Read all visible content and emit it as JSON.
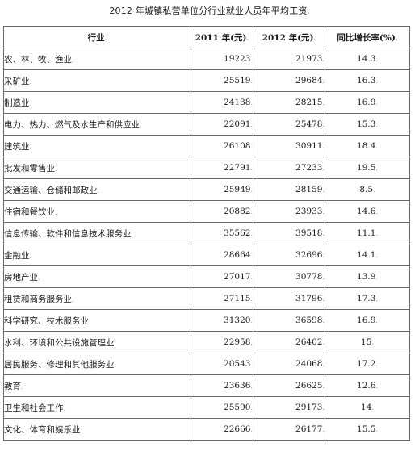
{
  "title": "2012 年城镇私营单位分行业就业人员年平均工资",
  "mark": ".",
  "headers": {
    "industry": "行业",
    "y2011": "2011 年(元)",
    "y2012": "2012 年(元)",
    "growth": "同比增长率(%)"
  },
  "rows": [
    {
      "industry": "农、林、牧、渔业",
      "y2011": "19223",
      "y2012": "21973",
      "growth": "14.3"
    },
    {
      "industry": "采矿业",
      "y2011": "25519",
      "y2012": "29684",
      "growth": "16.3"
    },
    {
      "industry": "制造业",
      "y2011": "24138",
      "y2012": "28215",
      "growth": "16.9"
    },
    {
      "industry": "电力、热力、燃气及水生产和供应业",
      "y2011": "22091",
      "y2012": "25478",
      "growth": "15.3"
    },
    {
      "industry": "建筑业",
      "y2011": "26108",
      "y2012": "30911",
      "growth": "18.4"
    },
    {
      "industry": "批发和零售业",
      "y2011": "22791",
      "y2012": "27233",
      "growth": "19.5"
    },
    {
      "industry": "交通运输、仓储和邮政业",
      "y2011": "25949",
      "y2012": "28159",
      "growth": "8.5"
    },
    {
      "industry": "住宿和餐饮业",
      "y2011": "20882",
      "y2012": "23933",
      "growth": "14.6"
    },
    {
      "industry": "信息传输、软件和信息技术服务业",
      "y2011": "35562",
      "y2012": "39518",
      "growth": "11.1"
    },
    {
      "industry": "金融业",
      "y2011": "28664",
      "y2012": "32696",
      "growth": "14.1"
    },
    {
      "industry": "房地产业",
      "y2011": "27017",
      "y2012": "30778",
      "growth": "13.9"
    },
    {
      "industry": "租赁和商务服务业",
      "y2011": "27115",
      "y2012": "31796",
      "growth": "17.3"
    },
    {
      "industry": "科学研究、技术服务业",
      "y2011": "31320",
      "y2012": "36598",
      "growth": "16.9"
    },
    {
      "industry": "水利、环境和公共设施管理业",
      "y2011": "22958",
      "y2012": "26402",
      "growth": "15"
    },
    {
      "industry": "居民服务、修理和其他服务业",
      "y2011": "20543",
      "y2012": "24068",
      "growth": "17.2"
    },
    {
      "industry": "教育",
      "y2011": "23636",
      "y2012": "26625",
      "growth": "12.6"
    },
    {
      "industry": "卫生和社会工作",
      "y2011": "25590",
      "y2012": "29173",
      "growth": "14"
    },
    {
      "industry": "文化、体育和娱乐业",
      "y2011": "22666",
      "y2012": "26177",
      "growth": "15.5"
    }
  ]
}
